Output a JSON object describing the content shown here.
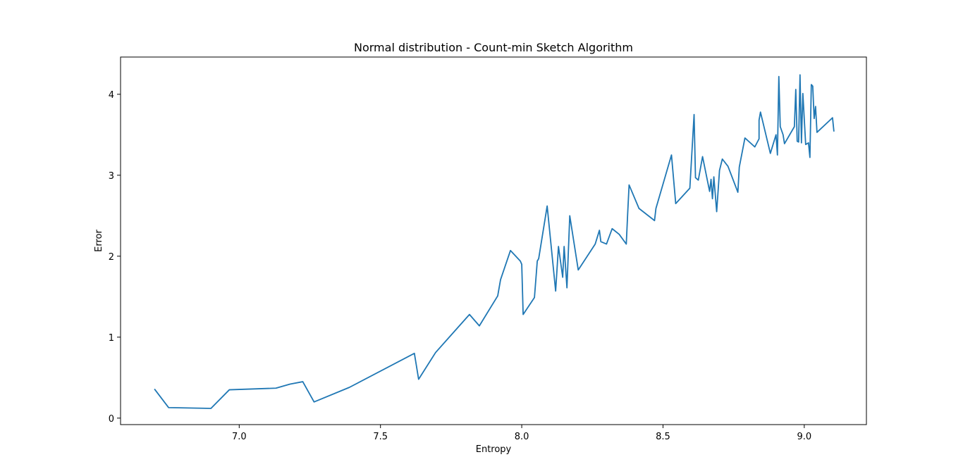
{
  "chart_data": {
    "type": "line",
    "title": "Normal distribution - Count-min Sketch Algorithm",
    "xlabel": "Entropy",
    "ylabel": "Error",
    "xlim": [
      6.58,
      9.22
    ],
    "ylim": [
      -0.08,
      4.46
    ],
    "xticks": [
      7.0,
      7.5,
      8.0,
      8.5,
      9.0
    ],
    "xtick_labels": [
      "7.0",
      "7.5",
      "8.0",
      "8.5",
      "9.0"
    ],
    "yticks": [
      0,
      1,
      2,
      3,
      4
    ],
    "ytick_labels": [
      "0",
      "1",
      "2",
      "3",
      "4"
    ],
    "grid": false,
    "line_color": "#1f77b4",
    "series": [
      {
        "x": [
          6.7,
          6.75,
          6.9,
          6.965,
          7.13,
          7.18,
          7.225,
          7.265,
          7.39,
          7.62,
          7.635,
          7.695,
          7.815,
          7.85,
          7.915,
          7.925,
          7.96,
          7.995,
          8.0,
          8.005,
          8.045,
          8.055,
          8.06,
          8.09,
          8.12,
          8.13,
          8.145,
          8.15,
          8.16,
          8.17,
          8.2,
          8.26,
          8.275,
          8.28,
          8.3,
          8.32,
          8.345,
          8.37,
          8.375,
          8.38,
          8.415,
          8.47,
          8.475,
          8.53,
          8.545,
          8.595,
          8.61,
          8.615,
          8.625,
          8.64,
          8.665,
          8.67,
          8.675,
          8.68,
          8.69,
          8.7,
          8.71,
          8.73,
          8.765,
          8.77,
          8.79,
          8.825,
          8.84,
          8.84,
          8.845,
          8.88,
          8.9,
          8.905,
          8.91,
          8.915,
          8.925,
          8.93,
          8.965,
          8.97,
          8.975,
          8.98,
          8.985,
          8.99,
          8.995,
          9.005,
          9.015,
          9.02,
          9.025,
          9.03,
          9.035,
          9.04,
          9.045,
          9.1,
          9.105
        ],
        "y": [
          0.36,
          0.13,
          0.12,
          0.35,
          0.37,
          0.42,
          0.45,
          0.2,
          0.38,
          0.8,
          0.48,
          0.81,
          1.28,
          1.14,
          1.51,
          1.71,
          2.07,
          1.94,
          1.9,
          1.28,
          1.49,
          1.94,
          1.97,
          2.62,
          1.57,
          2.12,
          1.74,
          2.12,
          1.61,
          2.5,
          1.83,
          2.15,
          2.32,
          2.18,
          2.15,
          2.34,
          2.27,
          2.15,
          2.53,
          2.88,
          2.59,
          2.44,
          2.59,
          3.25,
          2.65,
          2.84,
          3.75,
          2.97,
          2.94,
          3.23,
          2.8,
          2.95,
          2.71,
          2.98,
          2.55,
          3.06,
          3.2,
          3.11,
          2.79,
          3.1,
          3.46,
          3.35,
          3.45,
          3.68,
          3.78,
          3.27,
          3.5,
          3.25,
          4.22,
          3.6,
          3.5,
          3.39,
          3.6,
          4.06,
          3.42,
          3.41,
          4.24,
          3.4,
          4.01,
          3.38,
          3.4,
          3.22,
          4.12,
          4.1,
          3.7,
          3.85,
          3.53,
          3.71,
          3.54
        ]
      }
    ]
  }
}
